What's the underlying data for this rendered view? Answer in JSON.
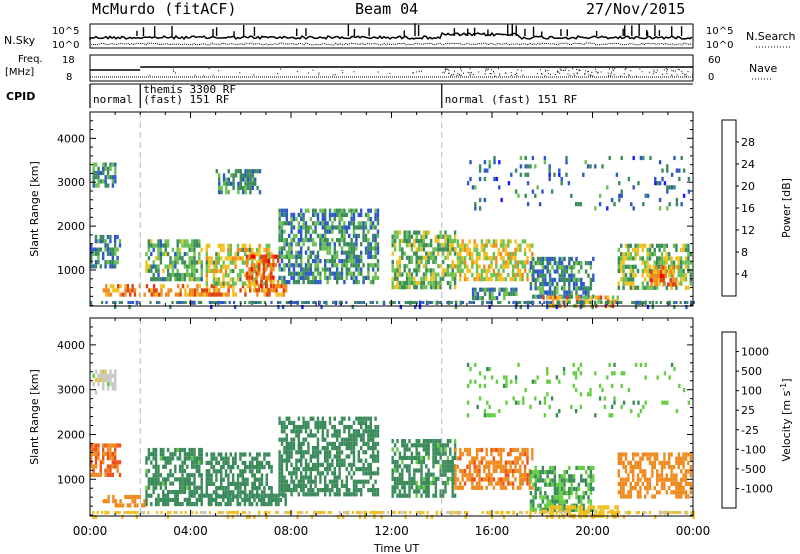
{
  "header": {
    "station": "McMurdo (fitACF)",
    "beam": "Beam 04",
    "date": "27/Nov/2015"
  },
  "status_panel": {
    "left_labels": {
      "nsky": "N.Sky",
      "freq": "Freq.",
      "freq_unit": "[MHz]",
      "cpid": "CPID"
    },
    "right_labels": {
      "nsearch": "N.Search",
      "nave": "Nave"
    },
    "noise_ticks": [
      "10^5",
      "10^0"
    ],
    "freq_ticks": [
      "18",
      "8"
    ],
    "nave_ticks": [
      "60",
      "0"
    ],
    "cpid_segments": [
      {
        "start_hour": 0.0,
        "end_hour": 2.0,
        "label": "normal"
      },
      {
        "start_hour": 2.0,
        "end_hour": 14.0,
        "label": "themis 3300 RF\n(fast) 151 RF"
      },
      {
        "start_hour": 14.0,
        "end_hour": 24.0,
        "label": "normal (fast) 151 RF"
      }
    ]
  },
  "chart_data": [
    {
      "type": "heatmap",
      "panel": "power",
      "xlabel": "Time UT",
      "ylabel": "Slant Range [km]",
      "xlim": [
        0,
        24
      ],
      "ylim": [
        180,
        4600
      ],
      "x_ticks": [
        "00:00",
        "04:00",
        "08:00",
        "12:00",
        "16:00",
        "20:00",
        "00:00"
      ],
      "y_ticks": [
        1000,
        2000,
        3000,
        4000
      ],
      "colorbar_label": "Power [dB]",
      "colorbar_ticks": [
        4,
        8,
        12,
        16,
        20,
        24,
        28
      ],
      "colorbar_colors": [
        "#1a1aff",
        "#2d58c8",
        "#3a8a5a",
        "#6ac050",
        "#f0c020",
        "#f08a1e",
        "#e04010",
        "#ff0000"
      ],
      "dashed_lines_hours": [
        2.0,
        14.0
      ],
      "regions": [
        {
          "t0": 0.1,
          "t1": 1.0,
          "r0": 2950,
          "r1": 3450,
          "level": 10
        },
        {
          "t0": 0.0,
          "t1": 1.2,
          "r0": 1100,
          "r1": 1800,
          "level": 9
        },
        {
          "t0": 0.5,
          "t1": 7.8,
          "r0": 420,
          "r1": 680,
          "level": 22
        },
        {
          "t0": 2.2,
          "t1": 4.4,
          "r0": 750,
          "r1": 1700,
          "level": 12
        },
        {
          "t0": 4.6,
          "t1": 7.2,
          "r0": 650,
          "r1": 1600,
          "level": 16
        },
        {
          "t0": 6.2,
          "t1": 7.5,
          "r0": 500,
          "r1": 1350,
          "level": 24
        },
        {
          "t0": 5.0,
          "t1": 6.8,
          "r0": 2800,
          "r1": 3300,
          "level": 9
        },
        {
          "t0": 7.5,
          "t1": 11.5,
          "r0": 700,
          "r1": 2400,
          "level": 10
        },
        {
          "t0": 12.0,
          "t1": 14.5,
          "r0": 600,
          "r1": 1900,
          "level": 13
        },
        {
          "t0": 14.5,
          "t1": 17.6,
          "r0": 800,
          "r1": 1700,
          "level": 17
        },
        {
          "t0": 15.2,
          "t1": 17.0,
          "r0": 350,
          "r1": 600,
          "level": 10
        },
        {
          "t0": 17.5,
          "t1": 20.0,
          "r0": 350,
          "r1": 1300,
          "level": 9
        },
        {
          "t0": 18.0,
          "t1": 21.0,
          "r0": 220,
          "r1": 420,
          "level": 20
        },
        {
          "t0": 21.0,
          "t1": 23.9,
          "r0": 600,
          "r1": 1600,
          "level": 14
        },
        {
          "t0": 22.3,
          "t1": 23.4,
          "r0": 700,
          "r1": 1100,
          "level": 24
        },
        {
          "t0": 15.0,
          "t1": 23.8,
          "r0": 2400,
          "r1": 3600,
          "level": 8,
          "sparse": true
        },
        {
          "t0": 0.0,
          "t1": 24.0,
          "r0": 180,
          "r1": 300,
          "level": 7,
          "sparse": true
        }
      ]
    },
    {
      "type": "heatmap",
      "panel": "velocity",
      "xlabel": "Time UT",
      "ylabel": "Slant Range [km]",
      "xlim": [
        0,
        24
      ],
      "ylim": [
        180,
        4600
      ],
      "x_ticks": [
        "00:00",
        "04:00",
        "08:00",
        "12:00",
        "16:00",
        "20:00",
        "00:00"
      ],
      "y_ticks": [
        1000,
        2000,
        3000,
        4000
      ],
      "colorbar_label": "Velocity [m s^-1]",
      "colorbar_ticks": [
        1000,
        500,
        100,
        25,
        -25,
        -100,
        -500,
        -1000
      ],
      "colorbar_colors": [
        "#2244cc",
        "#2e7a8c",
        "#3a8a5a",
        "#66cc44",
        "#c8c8c0",
        "#f0c020",
        "#f08a1e",
        "#f05018",
        "#ff0000"
      ],
      "dashed_lines_hours": [
        2.0,
        14.0
      ],
      "regions": [
        {
          "t0": 0.1,
          "t1": 1.0,
          "r0": 2950,
          "r1": 3450,
          "level": 0
        },
        {
          "t0": 0.0,
          "t1": 1.2,
          "r0": 1100,
          "r1": 1800,
          "level": -500
        },
        {
          "t0": 0.5,
          "t1": 2.2,
          "r0": 380,
          "r1": 650,
          "level": -300
        },
        {
          "t0": 2.2,
          "t1": 7.8,
          "r0": 420,
          "r1": 680,
          "level": 200
        },
        {
          "t0": 2.2,
          "t1": 4.4,
          "r0": 750,
          "r1": 1700,
          "level": 150
        },
        {
          "t0": 4.6,
          "t1": 7.2,
          "r0": 650,
          "r1": 1600,
          "level": 300
        },
        {
          "t0": 7.5,
          "t1": 11.5,
          "r0": 700,
          "r1": 2400,
          "level": 250
        },
        {
          "t0": 12.0,
          "t1": 14.5,
          "r0": 600,
          "r1": 1900,
          "level": 150
        },
        {
          "t0": 14.5,
          "t1": 17.6,
          "r0": 800,
          "r1": 1700,
          "level": -400
        },
        {
          "t0": 17.5,
          "t1": 20.0,
          "r0": 350,
          "r1": 1300,
          "level": 100
        },
        {
          "t0": 18.0,
          "t1": 21.0,
          "r0": 220,
          "r1": 420,
          "level": -60
        },
        {
          "t0": 21.0,
          "t1": 23.9,
          "r0": 600,
          "r1": 1600,
          "level": -300
        },
        {
          "t0": 15.0,
          "t1": 23.8,
          "r0": 2400,
          "r1": 3600,
          "level": 80,
          "sparse": true
        },
        {
          "t0": 0.0,
          "t1": 24.0,
          "r0": 180,
          "r1": 300,
          "level": -60,
          "sparse": true
        }
      ]
    }
  ]
}
